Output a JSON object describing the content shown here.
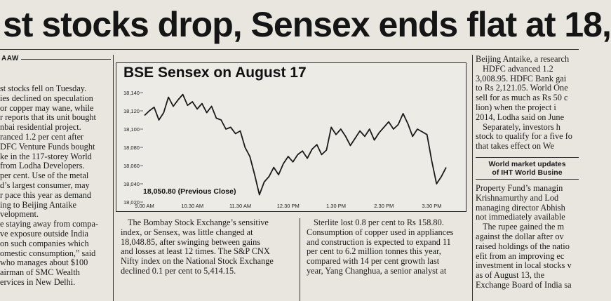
{
  "headline": "st stocks drop, Sensex ends flat at 18,",
  "byline": "AAW",
  "left_column": [
    "st stocks fell on Tuesday.",
    "ies declined on speculation",
    "or copper may wane, while",
    "r reports that its unit bought",
    "nbai residential project.",
    "ranced 1.2 per cent after",
    "DFC Venture Funds bought",
    "ke in the 117-storey World",
    "from Lodha Developers.",
    "per cent. Use of the metal",
    "d’s largest consumer, may",
    "r pace this year as demand",
    "ing to Beijing Antaike",
    "velopment.",
    "e staying away from compa-",
    "ve exposure outside India",
    "on such companies which",
    "omestic consumption,” said",
    "who manages about $100",
    "airman of SMC Wealth",
    "ervices in New Delhi."
  ],
  "chart_data": {
    "type": "line",
    "title": "BSE Sensex on August 17",
    "x_tick_labels": [
      "9.00 AM",
      "10.30 AM",
      "11.30 AM",
      "12.30 PM",
      "1.30 PM",
      "2.30 PM",
      "3.30 PM"
    ],
    "y_tick_labels": [
      "18,140",
      "18,120",
      "18,100",
      "18,080",
      "18,060",
      "18,040",
      "18,020"
    ],
    "ylim": [
      18020,
      18140
    ],
    "annotation": "18,050.80 (Previous Close)",
    "previous_close": 18050.8,
    "series": [
      {
        "x": [
          0,
          0.1,
          0.2,
          0.3,
          0.4,
          0.5,
          0.6,
          0.7,
          0.8,
          0.9,
          1.0,
          1.1,
          1.2,
          1.3,
          1.4,
          1.5,
          1.6,
          1.7,
          1.8,
          1.9,
          2.0,
          2.1,
          2.2,
          2.3,
          2.4,
          2.5,
          2.6,
          2.7,
          2.8,
          2.9,
          3.0,
          3.1,
          3.2,
          3.3,
          3.4,
          3.5,
          3.6,
          3.7,
          3.8,
          3.9,
          4.0,
          4.1,
          4.2,
          4.3,
          4.4,
          4.5,
          4.6,
          4.7,
          4.8,
          4.9,
          5.0,
          5.1,
          5.2,
          5.3,
          5.4,
          5.5,
          5.6,
          5.7,
          5.8,
          5.9,
          6.0,
          6.1,
          6.2,
          6.3
        ],
        "values": [
          18115,
          18120,
          18124,
          18110,
          18118,
          18135,
          18125,
          18132,
          18138,
          18126,
          18130,
          18122,
          18128,
          18118,
          18125,
          18112,
          18110,
          18100,
          18102,
          18095,
          18098,
          18080,
          18070,
          18050,
          18028,
          18042,
          18048,
          18058,
          18050,
          18062,
          18070,
          18064,
          18072,
          18076,
          18068,
          18078,
          18083,
          18072,
          18077,
          18102,
          18094,
          18100,
          18092,
          18082,
          18090,
          18098,
          18092,
          18100,
          18088,
          18096,
          18102,
          18108,
          18100,
          18105,
          18117,
          18106,
          18092,
          18100,
          18097,
          18094,
          18065,
          18040,
          18048,
          18058
        ]
      }
    ],
    "grid": false
  },
  "mid_column_1": [
    "The Bombay Stock Exchange’s sensitive",
    "index, or Sensex, was little changed at",
    "18,048.85, after swinging between gains",
    "and losses at least 12 times. The S&P CNX",
    "Nifty index on the National Stock Exchange",
    "declined 0.1 per cent to 5,414.15."
  ],
  "mid_column_2": [
    "Sterlite lost 0.8 per cent to Rs 158.80.",
    "Consumption of copper used in appliances",
    "and construction is expected to expand 11",
    "per cent to 6.2 million tonnes this year,",
    "compared with 14 per cent growth last",
    "year, Yang Changhua, a senior analyst at"
  ],
  "right_column_1": [
    "Beijing Antaike, a research",
    "HDFC advanced 1.2",
    "3,008.95. HDFC Bank gai",
    "to Rs 2,121.05. World One",
    "sell for as much as Rs 50 c",
    "lion) when the project i",
    "2014, Lodha said on June",
    "Separately, investors h",
    "stock to qualify for a five fo",
    "that takes effect on We"
  ],
  "note_box": [
    "World market updates",
    "of IHT World Busine"
  ],
  "right_column_2": [
    "Property Fund’s managin",
    "Krishnamurthy and Lod",
    "managing director Abhish",
    "not immediately available",
    "The rupee gained the m",
    "against the dollar after ov",
    "raised holdings of the natio",
    "efit from an improving ec",
    "investment in local stocks v",
    "as of August 13, the",
    "Exchange Board of India sa"
  ]
}
